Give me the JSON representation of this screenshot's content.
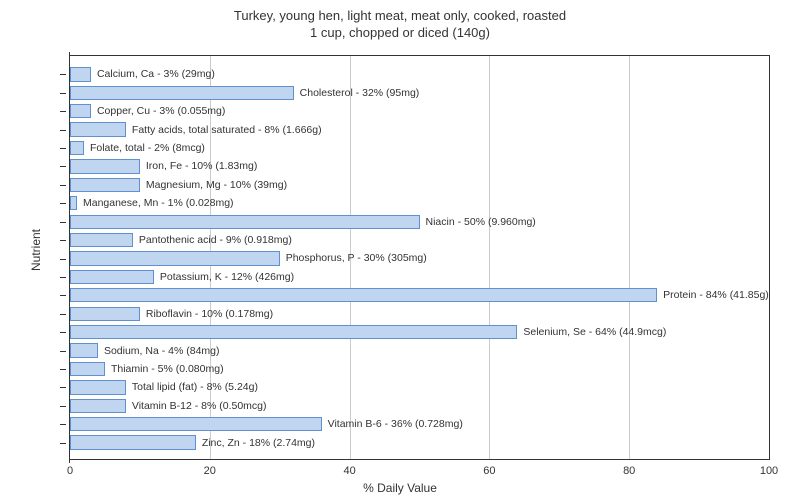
{
  "chart": {
    "type": "bar",
    "title_line1": "Turkey, young hen, light meat, meat only, cooked, roasted",
    "title_line2": "1 cup, chopped or diced (140g)",
    "title_fontsize": 13,
    "xlabel": "% Daily Value",
    "ylabel": "Nutrient",
    "label_fontsize": 12,
    "xlim": [
      0,
      100
    ],
    "xtick_step": 20,
    "xticks": [
      0,
      20,
      40,
      60,
      80,
      100
    ],
    "background_color": "#ffffff",
    "grid_color": "#cccccc",
    "bar_fill": "#c0d6f0",
    "bar_border": "#6090d0",
    "bar_label_fontsize": 10.5,
    "nutrients": [
      {
        "label": "Calcium, Ca - 3% (29mg)",
        "value": 3
      },
      {
        "label": "Cholesterol - 32% (95mg)",
        "value": 32
      },
      {
        "label": "Copper, Cu - 3% (0.055mg)",
        "value": 3
      },
      {
        "label": "Fatty acids, total saturated - 8% (1.666g)",
        "value": 8
      },
      {
        "label": "Folate, total - 2% (8mcg)",
        "value": 2
      },
      {
        "label": "Iron, Fe - 10% (1.83mg)",
        "value": 10
      },
      {
        "label": "Magnesium, Mg - 10% (39mg)",
        "value": 10
      },
      {
        "label": "Manganese, Mn - 1% (0.028mg)",
        "value": 1
      },
      {
        "label": "Niacin - 50% (9.960mg)",
        "value": 50
      },
      {
        "label": "Pantothenic acid - 9% (0.918mg)",
        "value": 9
      },
      {
        "label": "Phosphorus, P - 30% (305mg)",
        "value": 30
      },
      {
        "label": "Potassium, K - 12% (426mg)",
        "value": 12
      },
      {
        "label": "Protein - 84% (41.85g)",
        "value": 84
      },
      {
        "label": "Riboflavin - 10% (0.178mg)",
        "value": 10
      },
      {
        "label": "Selenium, Se - 64% (44.9mcg)",
        "value": 64
      },
      {
        "label": "Sodium, Na - 4% (84mg)",
        "value": 4
      },
      {
        "label": "Thiamin - 5% (0.080mg)",
        "value": 5
      },
      {
        "label": "Total lipid (fat) - 8% (5.24g)",
        "value": 8
      },
      {
        "label": "Vitamin B-12 - 8% (0.50mcg)",
        "value": 8
      },
      {
        "label": "Vitamin B-6 - 36% (0.728mg)",
        "value": 36
      },
      {
        "label": "Zinc, Zn - 18% (2.74mg)",
        "value": 18
      }
    ]
  }
}
